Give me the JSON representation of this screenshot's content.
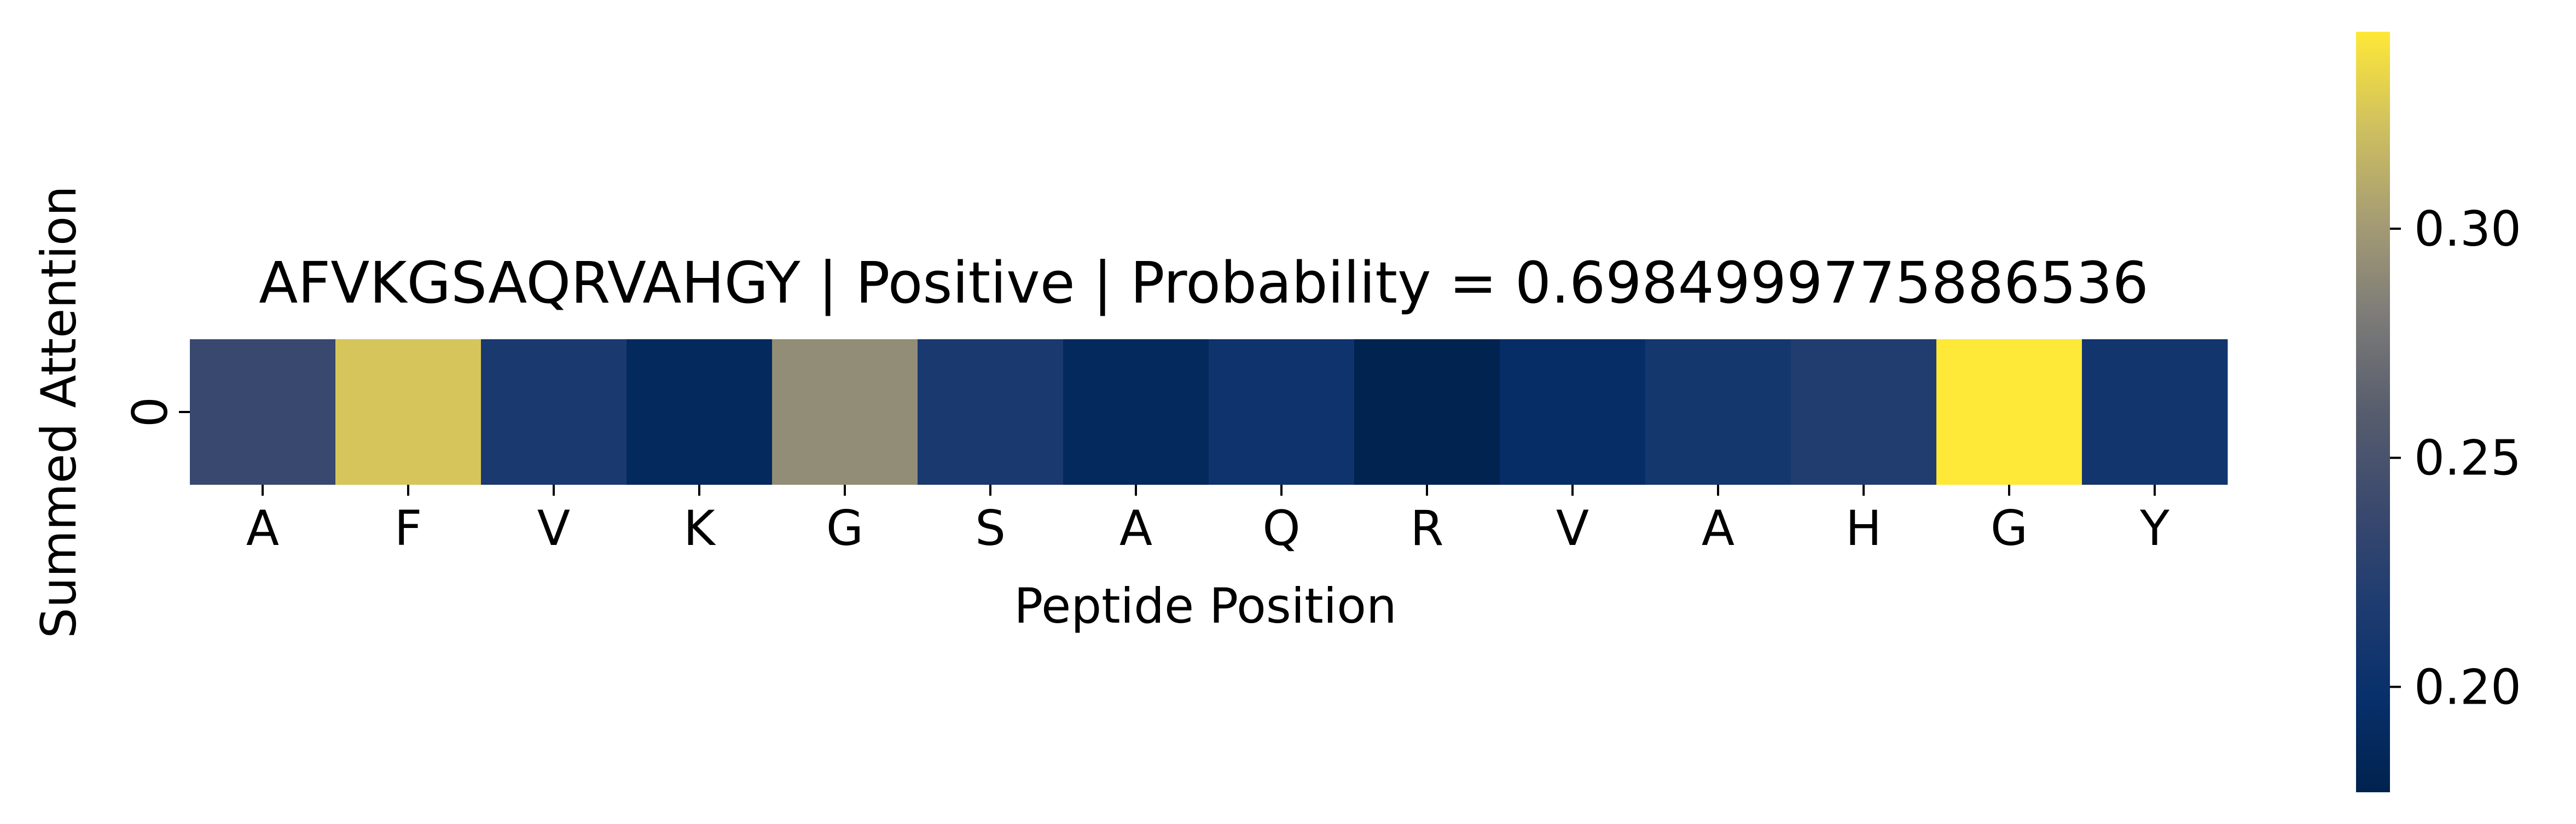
{
  "chart_data": {
    "type": "heatmap",
    "title": "AFVKGSAQRVAHGY | Positive | Probability = 0.6984999775886536",
    "xlabel": "Peptide Position",
    "ylabel": "Summed Attention",
    "x_categories": [
      "A",
      "F",
      "V",
      "K",
      "G",
      "S",
      "A",
      "Q",
      "R",
      "V",
      "A",
      "H",
      "G",
      "Y"
    ],
    "y_categories": [
      "0"
    ],
    "values": [
      [
        0.238,
        0.325,
        0.213,
        0.188,
        0.292,
        0.214,
        0.188,
        0.204,
        0.178,
        0.194,
        0.209,
        0.22,
        0.343,
        0.207
      ]
    ],
    "colormap": "cividis",
    "colorbar": {
      "vmin": 0.177,
      "vmax": 0.343,
      "ticks": [
        0.2,
        0.25,
        0.3
      ],
      "tick_labels": [
        "0.20",
        "0.25",
        "0.30"
      ]
    }
  }
}
